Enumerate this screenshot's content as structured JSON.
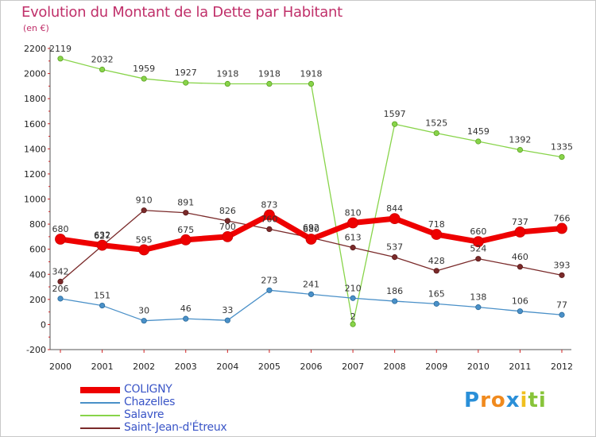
{
  "title": "Evolution du Montant de la Dette par Habitant",
  "subtitle": "(en €)",
  "chart_data": {
    "type": "line",
    "title": "Evolution du Montant de la Dette par Habitant",
    "ylabel": "(en €)",
    "xlabel": "",
    "grid": false,
    "categories": [
      "2000",
      "2001",
      "2002",
      "2003",
      "2004",
      "2005",
      "2006",
      "2007",
      "2008",
      "2009",
      "2010",
      "2011",
      "2012"
    ],
    "ylim": [
      -200,
      2200
    ],
    "yticks": [
      -200,
      0,
      200,
      400,
      600,
      800,
      1000,
      1200,
      1400,
      1600,
      1800,
      2000,
      2200
    ],
    "legend_position": "bottom-left",
    "series": [
      {
        "name": "COLIGNY",
        "color": "#ee0000",
        "values": [
          680,
          632,
          595,
          675,
          700,
          873,
          680,
          810,
          844,
          718,
          660,
          737,
          766
        ]
      },
      {
        "name": "Chazelles",
        "color": "#4a90c8",
        "values": [
          206,
          151,
          30,
          46,
          33,
          273,
          241,
          210,
          186,
          165,
          138,
          106,
          77
        ]
      },
      {
        "name": "Salavre",
        "color": "#88d44a",
        "values": [
          2119,
          2032,
          1959,
          1927,
          1918,
          1918,
          1918,
          2,
          1597,
          1525,
          1459,
          1392,
          1335
        ]
      },
      {
        "name": "Saint-Jean-d'Étreux",
        "color": "#7a2a2a",
        "values": [
          342,
          627,
          910,
          891,
          826,
          760,
          692,
          613,
          537,
          428,
          524,
          460,
          393
        ]
      }
    ]
  },
  "legend": {
    "items": [
      "COLIGNY",
      "Chazelles",
      "Salavre",
      "Saint-Jean-d'Étreux"
    ]
  },
  "logo": {
    "letters": [
      "P",
      "r",
      "o",
      "x",
      "i",
      "t",
      "i"
    ],
    "colors": [
      "#2a8fd8",
      "#f08a1e",
      "#f08a1e",
      "#2a8fd8",
      "#f0c020",
      "#88c43a",
      "#88c43a"
    ]
  }
}
